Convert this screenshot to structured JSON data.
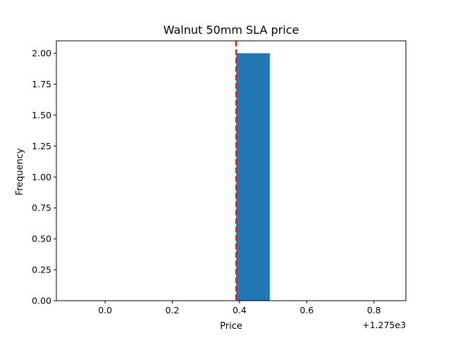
{
  "chart_data": {
    "type": "bar",
    "title": "Walnut 50mm SLA price",
    "xlabel": "Price",
    "ylabel": "Frequency",
    "x_offset_label": "+1.275e3",
    "x_offset": 1275,
    "xlim": [
      1274.855,
      1275.895
    ],
    "ylim": [
      0,
      2.1
    ],
    "x_ticks": [
      0.0,
      0.2,
      0.4,
      0.6,
      0.8
    ],
    "x_tick_labels": [
      "0.0",
      "0.2",
      "0.4",
      "0.6",
      "0.8"
    ],
    "y_ticks": [
      0.0,
      0.25,
      0.5,
      0.75,
      1.0,
      1.25,
      1.5,
      1.75,
      2.0
    ],
    "y_tick_labels": [
      "0.00",
      "0.25",
      "0.50",
      "0.75",
      "1.00",
      "1.25",
      "1.50",
      "1.75",
      "2.00"
    ],
    "bins": [
      {
        "x0": 1275.39,
        "x1": 1275.49,
        "count": 2
      }
    ],
    "reference_line": {
      "x": 1275.39,
      "color": "#d62728",
      "style": "dashed"
    },
    "bar_color": "#1f77b4",
    "grid": false,
    "legend": "none"
  }
}
